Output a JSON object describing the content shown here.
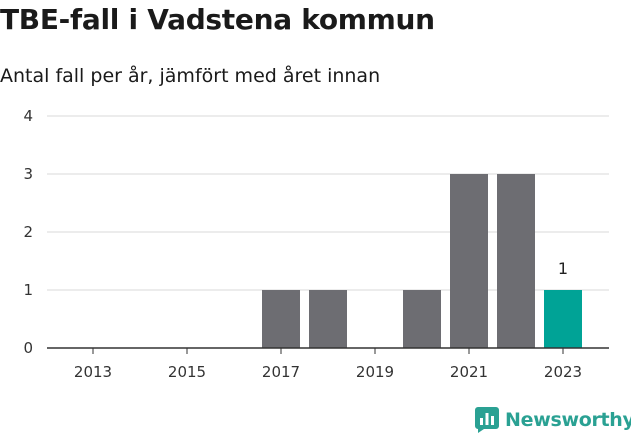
{
  "header": {
    "title": "TBE-fall i Vadstena kommun",
    "subtitle": "Antal fall per år, jämfört med året innan"
  },
  "branding": {
    "logo_text": "Newsworthy",
    "logo_icon": "bar-chart-chat-icon",
    "logo_color": "#2aa193"
  },
  "chart_data": {
    "type": "bar",
    "title": "TBE-fall i Vadstena kommun",
    "subtitle": "Antal fall per år, jämfört med året innan",
    "categories": [
      2013,
      2014,
      2015,
      2016,
      2017,
      2018,
      2019,
      2020,
      2021,
      2022,
      2023
    ],
    "x_tick_labels": [
      "2013",
      "2015",
      "2017",
      "2019",
      "2021",
      "2023"
    ],
    "values": [
      0,
      0,
      0,
      0,
      1,
      1,
      0,
      1,
      3,
      3,
      1
    ],
    "highlight_category": 2023,
    "data_labels": [
      {
        "category": 2023,
        "text": "1"
      }
    ],
    "ylim": [
      0,
      4
    ],
    "y_ticks": [
      0,
      1,
      2,
      3,
      4
    ],
    "grid": true,
    "colors": {
      "bar": "#6d6d72",
      "highlight": "#00a396",
      "grid": "#d9d9d9",
      "axis": "#333333"
    }
  }
}
